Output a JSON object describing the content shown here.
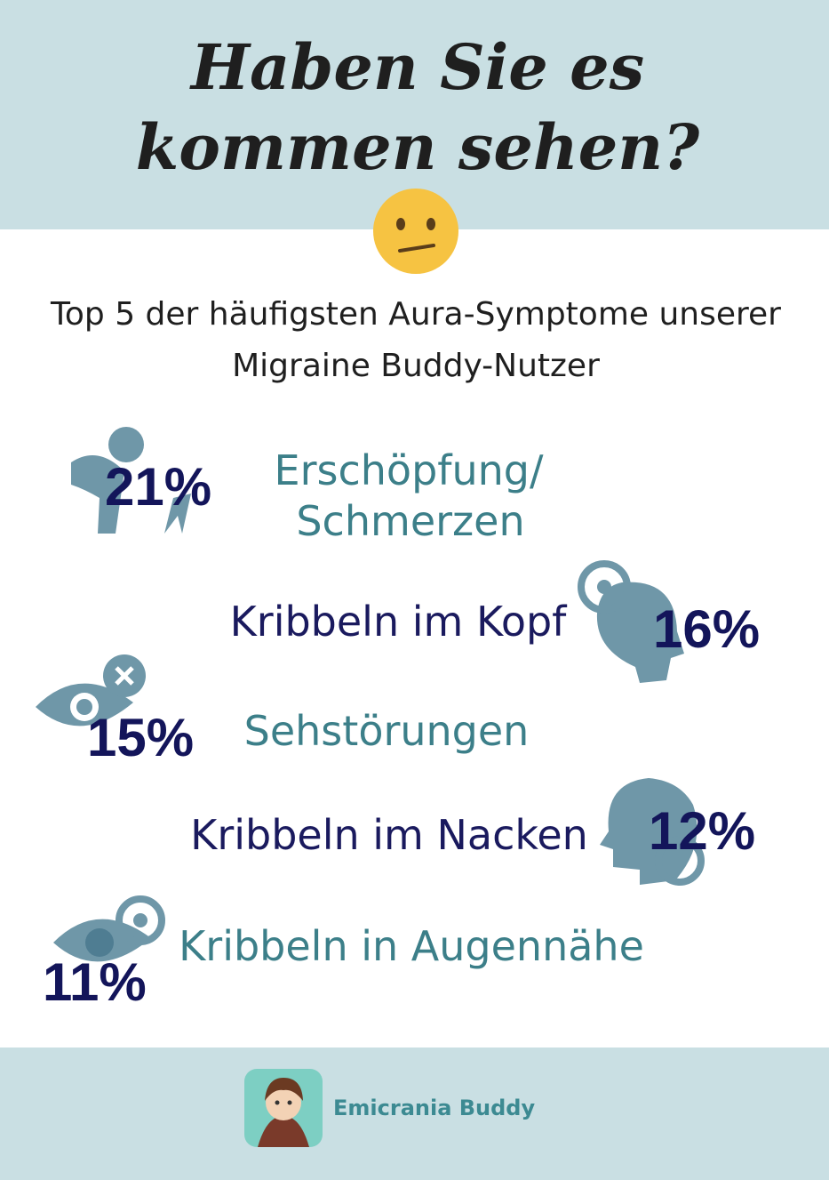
{
  "header": {
    "title_lines": [
      "Haben Sie es",
      "kommen sehen?"
    ]
  },
  "subtitle_lines": [
    "Top 5 der häufigsten Aura-Symptome unserer",
    "Migraine Buddy-Nutzer"
  ],
  "items": [
    {
      "percent": "21%",
      "label_lines": [
        "Erschöpfung/",
        "Schmerzen"
      ]
    },
    {
      "percent": "16%",
      "label_lines": [
        "Kribbeln im Kopf"
      ]
    },
    {
      "percent": "15%",
      "label_lines": [
        "Sehstörungen"
      ]
    },
    {
      "percent": "12%",
      "label_lines": [
        "Kribbeln im Nacken"
      ]
    },
    {
      "percent": "11%",
      "label_lines": [
        "Kribbeln in Augennähe"
      ]
    }
  ],
  "footer": {
    "brand": "Emicrania Buddy"
  }
}
